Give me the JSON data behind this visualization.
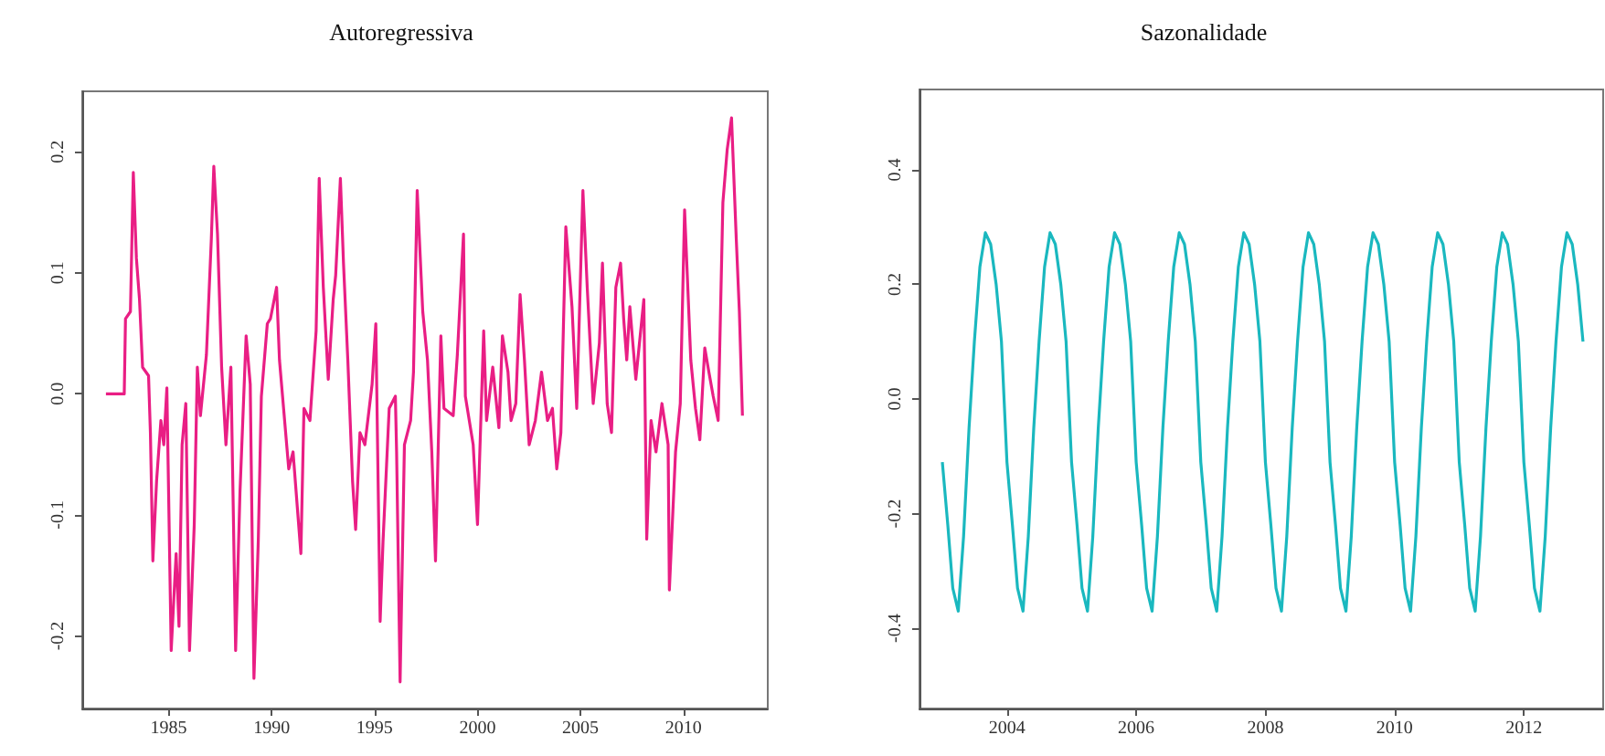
{
  "chart_data": [
    {
      "type": "line",
      "title": "Autoregressiva",
      "xlim": [
        1980.8,
        2014.1
      ],
      "xticks": [
        1985,
        1990,
        1995,
        2000,
        2005,
        2010
      ],
      "ylim": [
        -0.26,
        0.25
      ],
      "yticks": [
        {
          "value": -0.2,
          "label": "-0.2"
        },
        {
          "value": -0.1,
          "label": "-0.1"
        },
        {
          "value": 0,
          "label": "0.0"
        },
        {
          "value": 0.1,
          "label": "0.1"
        },
        {
          "value": 0.2,
          "label": "0.2"
        }
      ],
      "grid": false,
      "marker": "none",
      "line_style": "solid",
      "series": [
        {
          "color": "#e91e84",
          "x": [
            1981.95,
            1982.84,
            1982.9,
            1983.14,
            1983.28,
            1983.43,
            1983.58,
            1983.73,
            1984.02,
            1984.11,
            1984.23,
            1984.41,
            1984.62,
            1984.76,
            1984.91,
            1985.12,
            1985.36,
            1985.5,
            1985.65,
            1985.83,
            1986.01,
            1986.24,
            1986.39,
            1986.54,
            1986.83,
            1987.07,
            1987.19,
            1987.37,
            1987.57,
            1987.78,
            1988.02,
            1988.25,
            1988.46,
            1988.76,
            1988.96,
            1989.14,
            1989.35,
            1989.5,
            1989.79,
            1989.94,
            1990.24,
            1990.38,
            1990.53,
            1990.83,
            1991.04,
            1991.42,
            1991.57,
            1991.86,
            1992.16,
            1992.31,
            1992.51,
            1992.75,
            1992.99,
            1993.11,
            1993.34,
            1993.49,
            1993.7,
            1993.93,
            1994.08,
            1994.29,
            1994.53,
            1994.88,
            1995.06,
            1995.27,
            1995.41,
            1995.71,
            1996.01,
            1996.07,
            1996.24,
            1996.45,
            1996.75,
            1996.89,
            1997.07,
            1997.34,
            1997.57,
            1997.78,
            1997.96,
            1998.22,
            1998.37,
            1998.82,
            1999.02,
            1999.32,
            1999.41,
            1999.79,
            2000.0,
            2000.3,
            2000.44,
            2000.74,
            2001.04,
            2001.21,
            2001.48,
            2001.63,
            2001.86,
            2002.07,
            2002.28,
            2002.51,
            2002.81,
            2003.11,
            2003.4,
            2003.64,
            2003.85,
            2004.05,
            2004.29,
            2004.59,
            2004.82,
            2005.12,
            2005.33,
            2005.62,
            2005.92,
            2006.07,
            2006.3,
            2006.51,
            2006.72,
            2006.95,
            2007.1,
            2007.25,
            2007.4,
            2007.69,
            2008.08,
            2008.22,
            2008.43,
            2008.67,
            2008.96,
            2009.26,
            2009.32,
            2009.62,
            2009.85,
            2010.06,
            2010.36,
            2010.59,
            2010.8,
            2011.04,
            2011.24,
            2011.45,
            2011.69,
            2011.92,
            2012.13,
            2012.34,
            2012.57,
            2012.72,
            2012.87
          ],
          "values": [
            0,
            0,
            0.062,
            0.068,
            0.183,
            0.112,
            0.078,
            0.022,
            0.015,
            -0.032,
            -0.138,
            -0.072,
            -0.022,
            -0.042,
            0.005,
            -0.212,
            -0.132,
            -0.192,
            -0.042,
            -0.008,
            -0.212,
            -0.108,
            0.022,
            -0.018,
            0.032,
            0.128,
            0.188,
            0.132,
            0.022,
            -0.042,
            0.022,
            -0.212,
            -0.082,
            0.048,
            0.008,
            -0.235,
            -0.122,
            -0.002,
            0.058,
            0.062,
            0.088,
            0.028,
            -0.002,
            -0.062,
            -0.048,
            -0.132,
            -0.012,
            -0.022,
            0.052,
            0.178,
            0.088,
            0.012,
            0.078,
            0.098,
            0.178,
            0.108,
            0.028,
            -0.072,
            -0.112,
            -0.032,
            -0.042,
            0.008,
            0.058,
            -0.188,
            -0.122,
            -0.012,
            -0.002,
            -0.048,
            -0.238,
            -0.042,
            -0.022,
            0.018,
            0.168,
            0.068,
            0.028,
            -0.048,
            -0.138,
            0.048,
            -0.012,
            -0.018,
            0.032,
            0.132,
            -0.002,
            -0.042,
            -0.108,
            0.052,
            -0.022,
            0.022,
            -0.028,
            0.048,
            0.018,
            -0.022,
            -0.008,
            0.082,
            0.028,
            -0.042,
            -0.022,
            0.018,
            -0.022,
            -0.012,
            -0.062,
            -0.032,
            0.138,
            0.072,
            -0.012,
            0.168,
            0.088,
            -0.008,
            0.042,
            0.108,
            -0.008,
            -0.032,
            0.088,
            0.108,
            0.062,
            0.028,
            0.072,
            0.012,
            0.078,
            -0.12,
            -0.022,
            -0.048,
            -0.008,
            -0.042,
            -0.162,
            -0.048,
            -0.008,
            0.152,
            0.028,
            -0.012,
            -0.038,
            0.038,
            0.018,
            -0.002,
            -0.022,
            0.158,
            0.202,
            0.228,
            0.128,
            0.068,
            -0.018
          ]
        }
      ]
    },
    {
      "type": "line",
      "title": "Sazonalidade",
      "xlim": [
        "2002-08-25",
        "2013-03-25"
      ],
      "xticks": [
        "2004",
        "2006",
        "2008",
        "2010",
        "2012"
      ],
      "ylim": [
        -0.54,
        0.54
      ],
      "yticks": [
        -0.4,
        -0.2,
        {
          "value": 0,
          "label": "0.0"
        },
        0.2,
        0.4
      ],
      "grid": false,
      "marker": "none",
      "line_style": "solid",
      "series": [
        {
          "color": "#1ab8bf",
          "x": [
            "2003-01",
            "2003-02",
            "2003-03",
            "2003-04",
            "2003-05",
            "2003-06",
            "2003-07",
            "2003-08",
            "2003-09",
            "2003-10",
            "2003-11",
            "2003-12",
            "2004-01",
            "2004-02",
            "2004-03",
            "2004-04",
            "2004-05",
            "2004-06",
            "2004-07",
            "2004-08",
            "2004-09",
            "2004-10",
            "2004-11",
            "2004-12",
            "2005-01",
            "2005-02",
            "2005-03",
            "2005-04",
            "2005-05",
            "2005-06",
            "2005-07",
            "2005-08",
            "2005-09",
            "2005-10",
            "2005-11",
            "2005-12",
            "2006-01",
            "2006-02",
            "2006-03",
            "2006-04",
            "2006-05",
            "2006-06",
            "2006-07",
            "2006-08",
            "2006-09",
            "2006-10",
            "2006-11",
            "2006-12",
            "2007-01",
            "2007-02",
            "2007-03",
            "2007-04",
            "2007-05",
            "2007-06",
            "2007-07",
            "2007-08",
            "2007-09",
            "2007-10",
            "2007-11",
            "2007-12",
            "2008-01",
            "2008-02",
            "2008-03",
            "2008-04",
            "2008-05",
            "2008-06",
            "2008-07",
            "2008-08",
            "2008-09",
            "2008-10",
            "2008-11",
            "2008-12",
            "2009-01",
            "2009-02",
            "2009-03",
            "2009-04",
            "2009-05",
            "2009-06",
            "2009-07",
            "2009-08",
            "2009-09",
            "2009-10",
            "2009-11",
            "2009-12",
            "2010-01",
            "2010-02",
            "2010-03",
            "2010-04",
            "2010-05",
            "2010-06",
            "2010-07",
            "2010-08",
            "2010-09",
            "2010-10",
            "2010-11",
            "2010-12",
            "2011-01",
            "2011-02",
            "2011-03",
            "2011-04",
            "2011-05",
            "2011-06",
            "2011-07",
            "2011-08",
            "2011-09",
            "2011-10",
            "2011-11",
            "2011-12",
            "2012-01",
            "2012-02",
            "2012-03",
            "2012-04",
            "2012-05",
            "2012-06",
            "2012-07",
            "2012-08",
            "2012-09",
            "2012-10",
            "2012-11",
            "2012-12"
          ],
          "values": [
            -0.11,
            -0.22,
            -0.33,
            -0.37,
            -0.24,
            -0.05,
            0.1,
            0.23,
            0.29,
            0.27,
            0.2,
            0.1,
            -0.11,
            -0.22,
            -0.33,
            -0.37,
            -0.24,
            -0.05,
            0.1,
            0.23,
            0.29,
            0.27,
            0.2,
            0.1,
            -0.11,
            -0.22,
            -0.33,
            -0.37,
            -0.24,
            -0.05,
            0.1,
            0.23,
            0.29,
            0.27,
            0.2,
            0.1,
            -0.11,
            -0.22,
            -0.33,
            -0.37,
            -0.24,
            -0.05,
            0.1,
            0.23,
            0.29,
            0.27,
            0.2,
            0.1,
            -0.11,
            -0.22,
            -0.33,
            -0.37,
            -0.24,
            -0.05,
            0.1,
            0.23,
            0.29,
            0.27,
            0.2,
            0.1,
            -0.11,
            -0.22,
            -0.33,
            -0.37,
            -0.24,
            -0.05,
            0.1,
            0.23,
            0.29,
            0.27,
            0.2,
            0.1,
            -0.11,
            -0.22,
            -0.33,
            -0.37,
            -0.24,
            -0.05,
            0.1,
            0.23,
            0.29,
            0.27,
            0.2,
            0.1,
            -0.11,
            -0.22,
            -0.33,
            -0.37,
            -0.24,
            -0.05,
            0.1,
            0.23,
            0.29,
            0.27,
            0.2,
            0.1,
            -0.11,
            -0.22,
            -0.33,
            -0.37,
            -0.24,
            -0.05,
            0.1,
            0.23,
            0.29,
            0.27,
            0.2,
            0.1,
            -0.11,
            -0.22,
            -0.33,
            -0.37,
            -0.24,
            -0.05,
            0.1,
            0.23,
            0.29,
            0.27,
            0.2,
            0.1
          ]
        }
      ]
    }
  ]
}
